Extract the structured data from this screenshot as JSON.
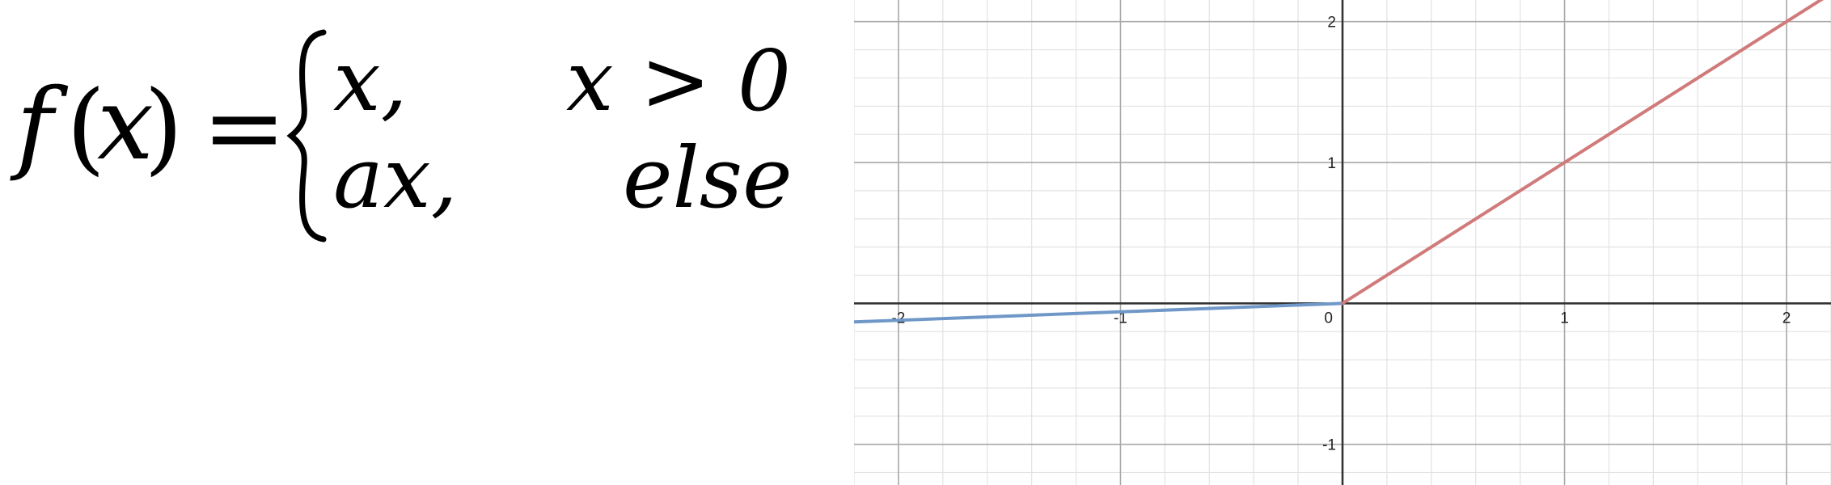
{
  "equation": {
    "fn_name": "f",
    "variable": "x",
    "equals": "=",
    "cases": [
      {
        "expr": "x,",
        "condition": "x > 0"
      },
      {
        "expr": "ax,",
        "condition": "else"
      }
    ]
  },
  "chart_data": {
    "type": "line",
    "xlim": [
      -2.2,
      2.2
    ],
    "ylim": [
      -1.22,
      2.05
    ],
    "grid": true,
    "x_ticks": [
      -2,
      -1,
      0,
      1,
      2
    ],
    "y_ticks": [
      -1,
      1,
      2
    ],
    "series": [
      {
        "x": [
          -2.2,
          0
        ],
        "y": [
          -0.132,
          0
        ],
        "color": "#6f98c8"
      },
      {
        "x": [
          0,
          2.2
        ],
        "y": [
          0,
          2.2
        ],
        "color": "#d07a7a"
      }
    ]
  }
}
